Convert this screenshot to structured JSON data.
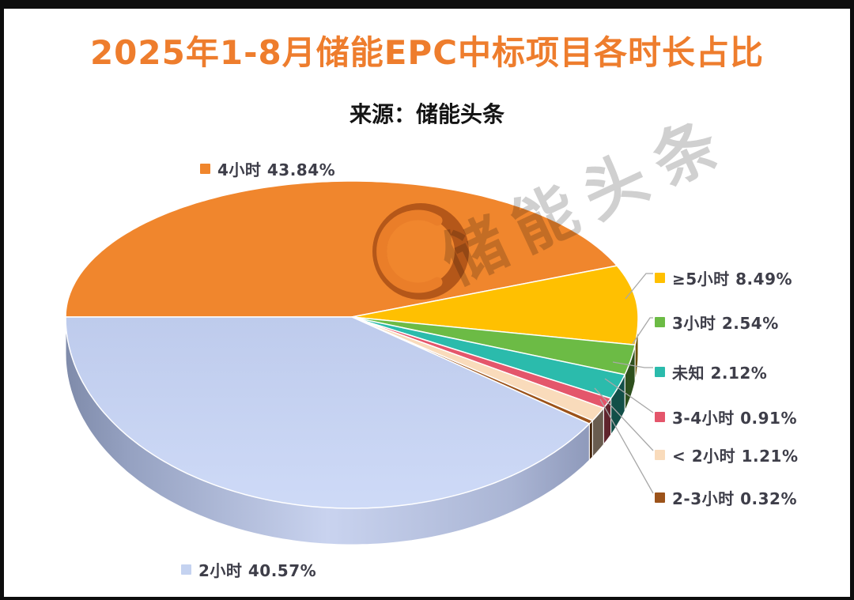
{
  "title": "2025年1-8月储能EPC中标项目各时长占比",
  "subtitle": "来源：储能头条",
  "watermark": {
    "text": "储能头条",
    "logo": "crescent-c-logo"
  },
  "colors": {
    "title_text": "#EE7D2D",
    "source_text": "#141414",
    "legend_text": "#3E3E49",
    "leader_line": "#A8A8A8",
    "background": "#FFFFFF",
    "frame_border": "#0D0D0D"
  },
  "chart_data": {
    "type": "pie",
    "style": "3d-perspective",
    "title": "2025年1-8月储能EPC中标项目各时长占比",
    "source": "来源：储能头条",
    "unit": "%",
    "start_angle_deg": 180,
    "direction": "clockwise",
    "legend_position": "around-pie",
    "slices": [
      {
        "label": "4小时",
        "value": 43.84,
        "color": "#F0862D"
      },
      {
        "label": "≥5小时",
        "value": 8.49,
        "color": "#FFC001"
      },
      {
        "label": "3小时",
        "value": 2.54,
        "color": "#6CBB45"
      },
      {
        "label": "未知",
        "value": 2.12,
        "color": "#2BBBAC"
      },
      {
        "label": "3-4小时",
        "value": 0.91,
        "color": "#E4566B"
      },
      {
        "label": "< 2小时",
        "value": 1.21,
        "color": "#F9DBBB"
      },
      {
        "label": "2-3小时",
        "value": 0.32,
        "color": "#9C531A"
      },
      {
        "label": "2小时",
        "value": 40.57,
        "color": "#C4D2F0"
      }
    ]
  }
}
